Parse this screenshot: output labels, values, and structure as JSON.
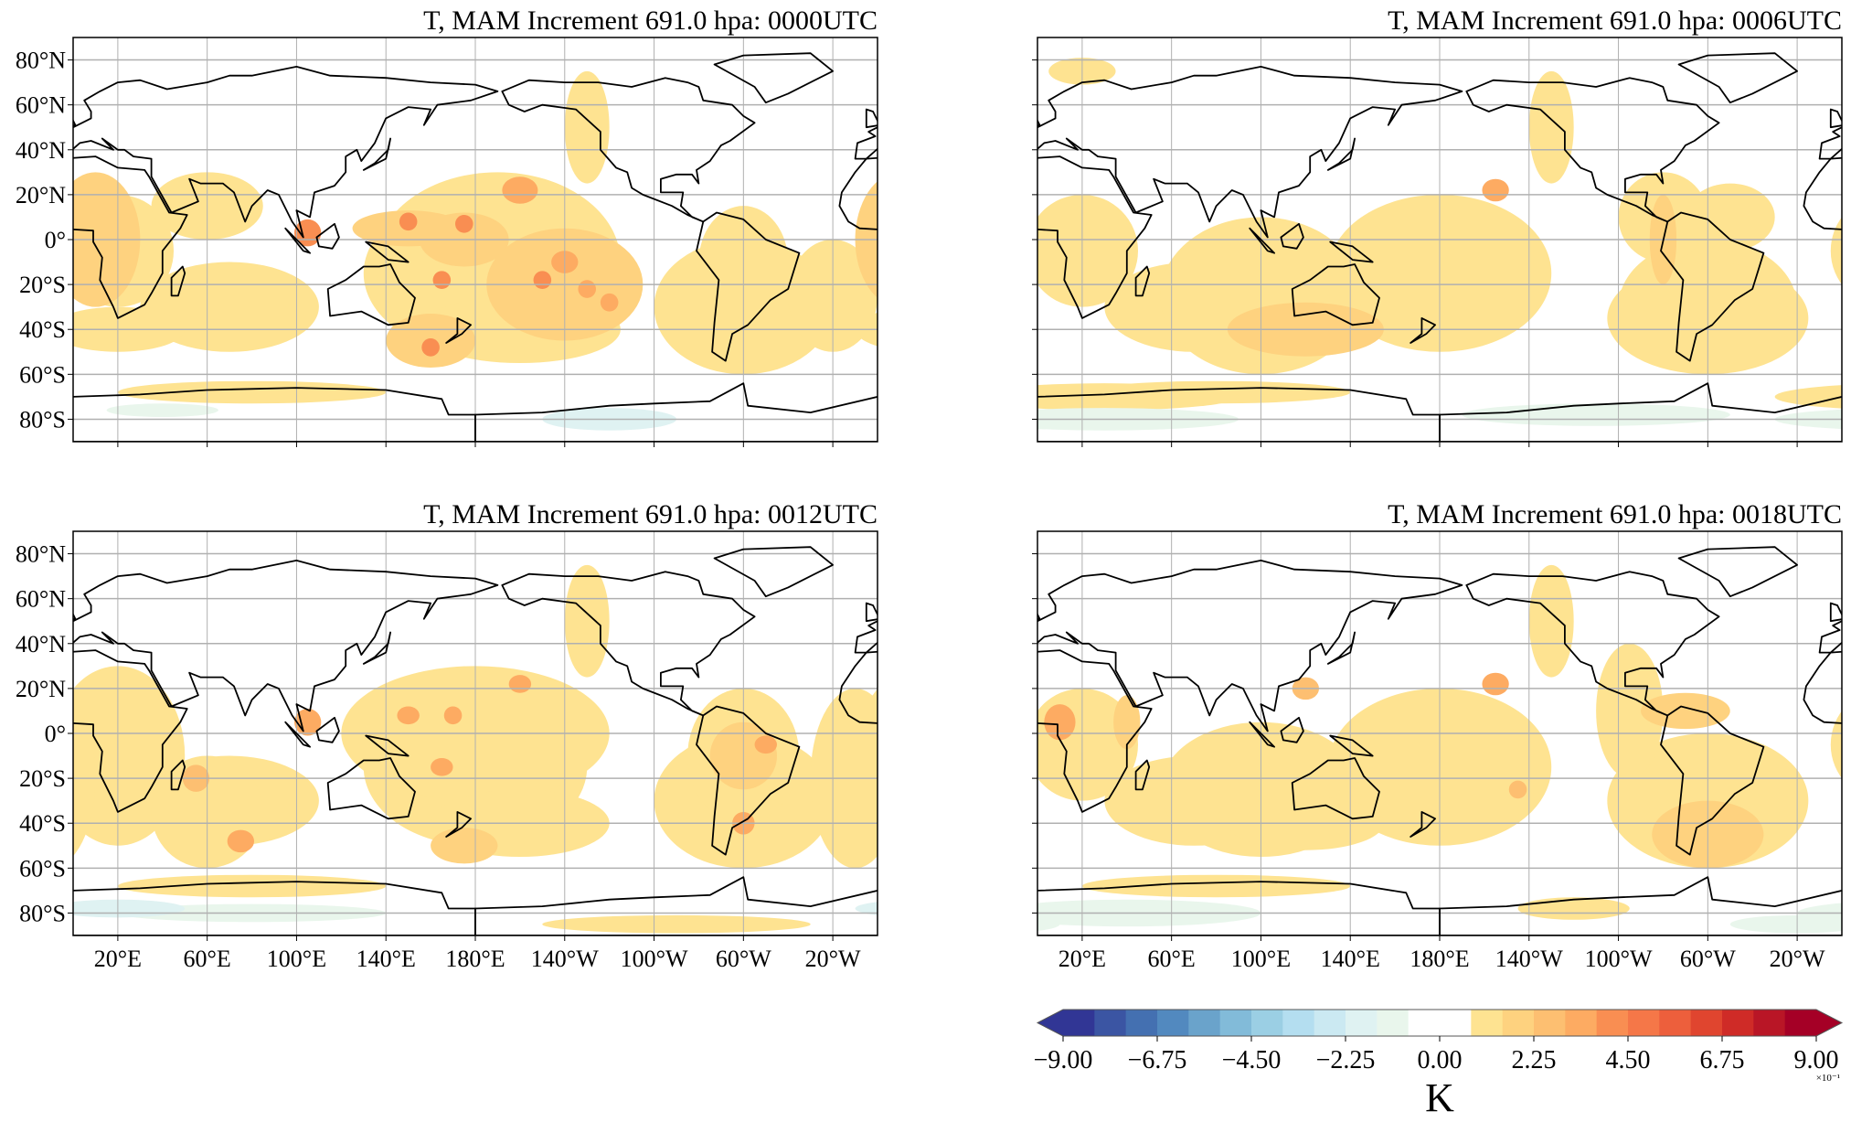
{
  "chart_data": [
    {
      "type": "heatmap",
      "title": "T, MAM Increment 691.0 hpa: 0000UTC",
      "show_ylabels": true,
      "show_xlabels": false
    },
    {
      "type": "heatmap",
      "title": "T, MAM Increment 691.0 hpa: 0006UTC",
      "show_ylabels": false,
      "show_xlabels": false
    },
    {
      "type": "heatmap",
      "title": "T, MAM Increment 691.0 hpa: 0012UTC",
      "show_ylabels": true,
      "show_xlabels": true
    },
    {
      "type": "heatmap",
      "title": "T, MAM Increment 691.0 hpa: 0018UTC",
      "show_ylabels": false,
      "show_xlabels": true
    }
  ],
  "axes": {
    "projection": "PlateCarree, central longitude 180",
    "lon_ticks": [
      20,
      60,
      100,
      140,
      180,
      220,
      260,
      300,
      340
    ],
    "lon_labels": [
      "20°E",
      "60°E",
      "100°E",
      "140°E",
      "180°E",
      "140°W",
      "100°W",
      "60°W",
      "20°W"
    ],
    "lat_ticks": [
      80,
      60,
      40,
      20,
      0,
      -20,
      -40,
      -60,
      -80
    ],
    "lat_labels": [
      "80°N",
      "60°N",
      "40°N",
      "20°N",
      "0°",
      "20°S",
      "40°S",
      "60°S",
      "80°S"
    ],
    "xlim": [
      0,
      360
    ],
    "ylim": [
      -90,
      90
    ],
    "grid": true
  },
  "colorbar": {
    "label": "K",
    "multiplier": "×10⁻¹",
    "range": [
      -9,
      9
    ],
    "step": 0.75,
    "extend": "both",
    "ticks": [
      -9,
      -6.75,
      -4.5,
      -2.25,
      0,
      2.25,
      4.5,
      6.75,
      9
    ],
    "tick_labels": [
      "−9.00",
      "−6.75",
      "−4.50",
      "−2.25",
      "0.00",
      "2.25",
      "4.50",
      "6.75",
      "9.00"
    ],
    "colors_neg": [
      "#313695",
      "#3b55a3",
      "#4470b1",
      "#5289bf",
      "#6aa3cb",
      "#82bbd9",
      "#9bcfe4",
      "#b4def0",
      "#cbe9f2",
      "#dff2f2",
      "#e9f6ec"
    ],
    "color_zero": "#ffffff",
    "colors_pos": [
      "#fee391",
      "#fed27f",
      "#fdbf71",
      "#fdab62",
      "#f98e52",
      "#f57748",
      "#ed5f3c",
      "#e0452f",
      "#cf2b27",
      "#b91626",
      "#a50026"
    ],
    "under_color": "#313695",
    "over_color": "#a50026"
  }
}
